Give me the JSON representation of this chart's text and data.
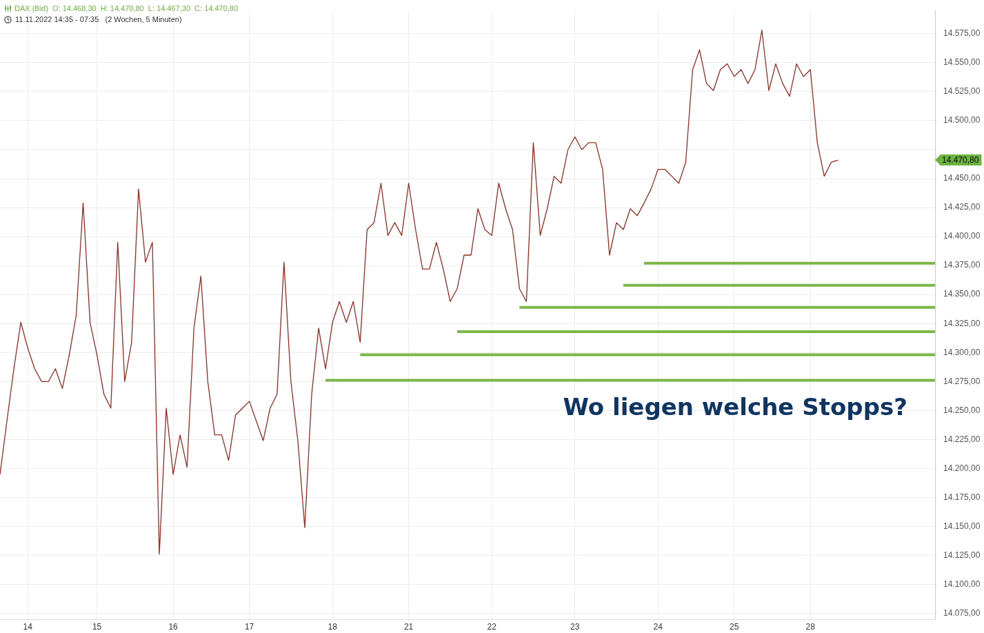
{
  "chart_data": {
    "type": "line",
    "title": "DAX (Bid)  O: 14.468,30  H: 14.470,80  L: 14.467,30  C: 14.470,80",
    "subtitle": "11.11.2022 14:35 - 07:35   (2 Wochen, 5 Minuten)",
    "categories": [
      null,
      null,
      null,
      null,
      "14",
      null,
      null,
      null,
      null,
      null,
      null,
      null,
      null,
      null,
      "15",
      null,
      null,
      null,
      null,
      null,
      null,
      null,
      null,
      null,
      null,
      "16",
      null,
      null,
      null,
      null,
      null,
      null,
      null,
      null,
      null,
      null,
      "17",
      null,
      null,
      null,
      null,
      null,
      null,
      null,
      null,
      null,
      null,
      null,
      "18",
      null,
      null,
      null,
      null,
      null,
      null,
      null,
      null,
      null,
      null,
      "21",
      null,
      null,
      null,
      null,
      null,
      null,
      null,
      null,
      null,
      null,
      null,
      "22",
      null,
      null,
      null,
      null,
      null,
      null,
      null,
      null,
      null,
      null,
      null,
      "23",
      null,
      null,
      null,
      null,
      null,
      null,
      null,
      null,
      null,
      null,
      null,
      "24",
      null,
      null,
      null,
      null,
      null,
      null,
      null,
      null,
      null,
      null,
      "25",
      null,
      null,
      null,
      null,
      null,
      null,
      null,
      null,
      null,
      null,
      "28",
      null,
      null,
      null,
      null,
      null,
      null,
      null,
      null,
      null,
      null,
      null,
      null,
      null,
      null,
      null,
      null,
      null,
      null
    ],
    "series": [
      {
        "color": "#9b2b1f",
        "values": [
          14195,
          14241,
          14286,
          14326,
          14304,
          14286,
          14275,
          14275,
          14286,
          14269,
          14298,
          14332,
          14429,
          14326,
          14298,
          14264,
          14252,
          14395,
          14275,
          14309,
          14441,
          14378,
          14395,
          14126,
          14252,
          14195,
          14229,
          14201,
          14321,
          14366,
          14275,
          14229,
          14229,
          14207,
          14246,
          14252,
          14258,
          14241,
          14224,
          14252,
          14264,
          14378,
          14275,
          14224,
          14149,
          14264,
          14321,
          14286,
          14326,
          14344,
          14326,
          14344,
          14309,
          14406,
          14412,
          14446,
          14401,
          14412,
          14401,
          14446,
          14406,
          14372,
          14372,
          14395,
          14372,
          14344,
          14355,
          14384,
          14384,
          14424,
          14406,
          14401,
          14446,
          14424,
          14406,
          14355,
          14344,
          14481,
          14401,
          14424,
          14452,
          14446,
          14475,
          14486,
          14475,
          14481,
          14481,
          14458,
          14384,
          14412,
          14406,
          14424,
          14418,
          14429,
          14441,
          14458,
          14458,
          14452,
          14446,
          14464,
          14544,
          14561,
          14532,
          14526,
          14544,
          14549,
          14538,
          14544,
          14532,
          14544,
          14578,
          14526,
          14549,
          14532,
          14521,
          14549,
          14538,
          14544,
          14481,
          14452,
          14464,
          14466,
          null,
          null,
          null,
          null,
          null,
          null,
          null,
          null,
          null,
          null,
          null,
          null,
          null,
          null
        ]
      },
      {
        "color": "#7ab648",
        "values": [
          null,
          null,
          null,
          null,
          null,
          null,
          null,
          null,
          null,
          null,
          null,
          null,
          null,
          null,
          null,
          null,
          null,
          null,
          null,
          null,
          null,
          null,
          null,
          null,
          null,
          null,
          null,
          null,
          null,
          null,
          null,
          null,
          null,
          null,
          null,
          null,
          null,
          null,
          null,
          null,
          null,
          null,
          null,
          null,
          null,
          null,
          null,
          null,
          null,
          null,
          null,
          null,
          null,
          null,
          null,
          null,
          null,
          null,
          null,
          null,
          null,
          null,
          null,
          null,
          null,
          null,
          null,
          null,
          null,
          null,
          null,
          null,
          null,
          null,
          null,
          null,
          null,
          null,
          null,
          null,
          null,
          null,
          null,
          null,
          null,
          null,
          null,
          null,
          null,
          null,
          null,
          null,
          null,
          14377,
          14377,
          14377,
          14377,
          14377,
          14377,
          14377,
          14377,
          14377,
          14377,
          14377,
          14377,
          14377,
          14377,
          14377,
          14377,
          14377,
          14377,
          14377,
          14377,
          14377,
          14377,
          14377,
          14377,
          14377,
          14377,
          14377,
          14377,
          14377,
          14377,
          14377,
          14377,
          14377,
          14377,
          14377,
          14377,
          14377,
          14377,
          14377,
          14377,
          14377,
          14377,
          14377
        ]
      },
      {
        "color": "#7ab648",
        "values": [
          null,
          null,
          null,
          null,
          null,
          null,
          null,
          null,
          null,
          null,
          null,
          null,
          null,
          null,
          null,
          null,
          null,
          null,
          null,
          null,
          null,
          null,
          null,
          null,
          null,
          null,
          null,
          null,
          null,
          null,
          null,
          null,
          null,
          null,
          null,
          null,
          null,
          null,
          null,
          null,
          null,
          null,
          null,
          null,
          null,
          null,
          null,
          null,
          null,
          null,
          null,
          null,
          null,
          null,
          null,
          null,
          null,
          null,
          null,
          null,
          null,
          null,
          null,
          null,
          null,
          null,
          null,
          null,
          null,
          null,
          null,
          null,
          null,
          null,
          null,
          null,
          null,
          null,
          null,
          null,
          null,
          null,
          null,
          null,
          null,
          null,
          null,
          null,
          null,
          null,
          14358,
          14358,
          14358,
          14358,
          14358,
          14358,
          14358,
          14358,
          14358,
          14358,
          14358,
          14358,
          14358,
          14358,
          14358,
          14358,
          14358,
          14358,
          14358,
          14358,
          14358,
          14358,
          14358,
          14358,
          14358,
          14358,
          14358,
          14358,
          14358,
          14358,
          14358,
          14358,
          14358,
          14358,
          14358,
          14358,
          14358,
          14358,
          14358,
          14358,
          14358,
          14358,
          14358,
          14358,
          14358,
          14358
        ]
      },
      {
        "color": "#7ab648",
        "values": [
          null,
          null,
          null,
          null,
          null,
          null,
          null,
          null,
          null,
          null,
          null,
          null,
          null,
          null,
          null,
          null,
          null,
          null,
          null,
          null,
          null,
          null,
          null,
          null,
          null,
          null,
          null,
          null,
          null,
          null,
          null,
          null,
          null,
          null,
          null,
          null,
          null,
          null,
          null,
          null,
          null,
          null,
          null,
          null,
          null,
          null,
          null,
          null,
          null,
          null,
          null,
          null,
          null,
          null,
          null,
          null,
          null,
          null,
          null,
          null,
          null,
          null,
          null,
          null,
          null,
          null,
          null,
          null,
          null,
          null,
          null,
          null,
          null,
          null,
          null,
          14339,
          14339,
          14339,
          14339,
          14339,
          14339,
          14339,
          14339,
          14339,
          14339,
          14339,
          14339,
          14339,
          14339,
          14339,
          14339,
          14339,
          14339,
          14339,
          14339,
          14339,
          14339,
          14339,
          14339,
          14339,
          14339,
          14339,
          14339,
          14339,
          14339,
          14339,
          14339,
          14339,
          14339,
          14339,
          14339,
          14339,
          14339,
          14339,
          14339,
          14339,
          14339,
          14339,
          14339,
          14339,
          14339,
          14339,
          14339,
          14339,
          14339,
          14339,
          14339,
          14339,
          14339,
          14339,
          14339,
          14339,
          14339,
          14339,
          14339,
          14339
        ]
      },
      {
        "color": "#7ab648",
        "values": [
          null,
          null,
          null,
          null,
          null,
          null,
          null,
          null,
          null,
          null,
          null,
          null,
          null,
          null,
          null,
          null,
          null,
          null,
          null,
          null,
          null,
          null,
          null,
          null,
          null,
          null,
          null,
          null,
          null,
          null,
          null,
          null,
          null,
          null,
          null,
          null,
          null,
          null,
          null,
          null,
          null,
          null,
          null,
          null,
          null,
          null,
          null,
          null,
          null,
          null,
          null,
          null,
          null,
          null,
          null,
          null,
          null,
          null,
          null,
          null,
          null,
          null,
          null,
          null,
          null,
          null,
          14318,
          14318,
          14318,
          14318,
          14318,
          14318,
          14318,
          14318,
          14318,
          14318,
          14318,
          14318,
          14318,
          14318,
          14318,
          14318,
          14318,
          14318,
          14318,
          14318,
          14318,
          14318,
          14318,
          14318,
          14318,
          14318,
          14318,
          14318,
          14318,
          14318,
          14318,
          14318,
          14318,
          14318,
          14318,
          14318,
          14318,
          14318,
          14318,
          14318,
          14318,
          14318,
          14318,
          14318,
          14318,
          14318,
          14318,
          14318,
          14318,
          14318,
          14318,
          14318,
          14318,
          14318,
          14318,
          14318,
          14318,
          14318,
          14318,
          14318,
          14318,
          14318,
          14318,
          14318,
          14318,
          14318,
          14318,
          14318,
          14318,
          14318
        ]
      },
      {
        "color": "#7ab648",
        "values": [
          null,
          null,
          null,
          null,
          null,
          null,
          null,
          null,
          null,
          null,
          null,
          null,
          null,
          null,
          null,
          null,
          null,
          null,
          null,
          null,
          null,
          null,
          null,
          null,
          null,
          null,
          null,
          null,
          null,
          null,
          null,
          null,
          null,
          null,
          null,
          null,
          null,
          null,
          null,
          null,
          null,
          null,
          null,
          null,
          null,
          null,
          null,
          null,
          null,
          null,
          null,
          null,
          14298,
          14298,
          14298,
          14298,
          14298,
          14298,
          14298,
          14298,
          14298,
          14298,
          14298,
          14298,
          14298,
          14298,
          14298,
          14298,
          14298,
          14298,
          14298,
          14298,
          14298,
          14298,
          14298,
          14298,
          14298,
          14298,
          14298,
          14298,
          14298,
          14298,
          14298,
          14298,
          14298,
          14298,
          14298,
          14298,
          14298,
          14298,
          14298,
          14298,
          14298,
          14298,
          14298,
          14298,
          14298,
          14298,
          14298,
          14298,
          14298,
          14298,
          14298,
          14298,
          14298,
          14298,
          14298,
          14298,
          14298,
          14298,
          14298,
          14298,
          14298,
          14298,
          14298,
          14298,
          14298,
          14298,
          14298,
          14298,
          14298,
          14298,
          14298,
          14298,
          14298,
          14298,
          14298,
          14298,
          14298,
          14298,
          14298,
          14298,
          14298,
          14298,
          14298,
          14298
        ]
      },
      {
        "color": "#7ab648",
        "values": [
          null,
          null,
          null,
          null,
          null,
          null,
          null,
          null,
          null,
          null,
          null,
          null,
          null,
          null,
          null,
          null,
          null,
          null,
          null,
          null,
          null,
          null,
          null,
          null,
          null,
          null,
          null,
          null,
          null,
          null,
          null,
          null,
          null,
          null,
          null,
          null,
          null,
          null,
          null,
          null,
          null,
          null,
          null,
          null,
          null,
          null,
          null,
          14276,
          14276,
          14276,
          14276,
          14276,
          14276,
          14276,
          14276,
          14276,
          14276,
          14276,
          14276,
          14276,
          14276,
          14276,
          14276,
          14276,
          14276,
          14276,
          14276,
          14276,
          14276,
          14276,
          14276,
          14276,
          14276,
          14276,
          14276,
          14276,
          14276,
          14276,
          14276,
          14276,
          14276,
          14276,
          14276,
          14276,
          14276,
          14276,
          14276,
          14276,
          14276,
          14276,
          14276,
          14276,
          14276,
          14276,
          14276,
          14276,
          14276,
          14276,
          14276,
          14276,
          14276,
          14276,
          14276,
          14276,
          14276,
          14276,
          14276,
          14276,
          14276,
          14276,
          14276,
          14276,
          14276,
          14276,
          14276,
          14276,
          14276,
          14276,
          14276,
          14276,
          14276,
          14276,
          14276,
          14276,
          14276,
          14276,
          14276,
          14276,
          14276,
          14276,
          14276,
          14276,
          14276,
          14276,
          14276,
          14276
        ]
      }
    ],
    "ylim": [
      14070,
      14595
    ],
    "yticks": [
      {
        "value": 14075,
        "label": "14.075,00"
      },
      {
        "value": 14100,
        "label": "14.100,00"
      },
      {
        "value": 14125,
        "label": "14.125,00"
      },
      {
        "value": 14150,
        "label": "14.150,00"
      },
      {
        "value": 14175,
        "label": "14.175,00"
      },
      {
        "value": 14200,
        "label": "14.200,00"
      },
      {
        "value": 14225,
        "label": "14.225,00"
      },
      {
        "value": 14250,
        "label": "14.250,00"
      },
      {
        "value": 14275,
        "label": "14.275,00"
      },
      {
        "value": 14300,
        "label": "14.300,00"
      },
      {
        "value": 14325,
        "label": "14.325,00"
      },
      {
        "value": 14350,
        "label": "14.350,00"
      },
      {
        "value": 14375,
        "label": "14.375,00"
      },
      {
        "value": 14400,
        "label": "14.400,00"
      },
      {
        "value": 14425,
        "label": "14.425,00"
      },
      {
        "value": 14450,
        "label": "14.450,00"
      },
      {
        "value": 14475,
        "label": null
      },
      {
        "value": 14500,
        "label": "14.500,00"
      },
      {
        "value": 14525,
        "label": "14.525,00"
      },
      {
        "value": 14550,
        "label": "14.550,00"
      },
      {
        "value": 14575,
        "label": "14.575,00"
      }
    ],
    "grid": true,
    "legend": false,
    "marker": "none",
    "line_style": "solid",
    "annotations": [
      "Wo liegen welche Stopps?",
      "14.470,80"
    ]
  }
}
